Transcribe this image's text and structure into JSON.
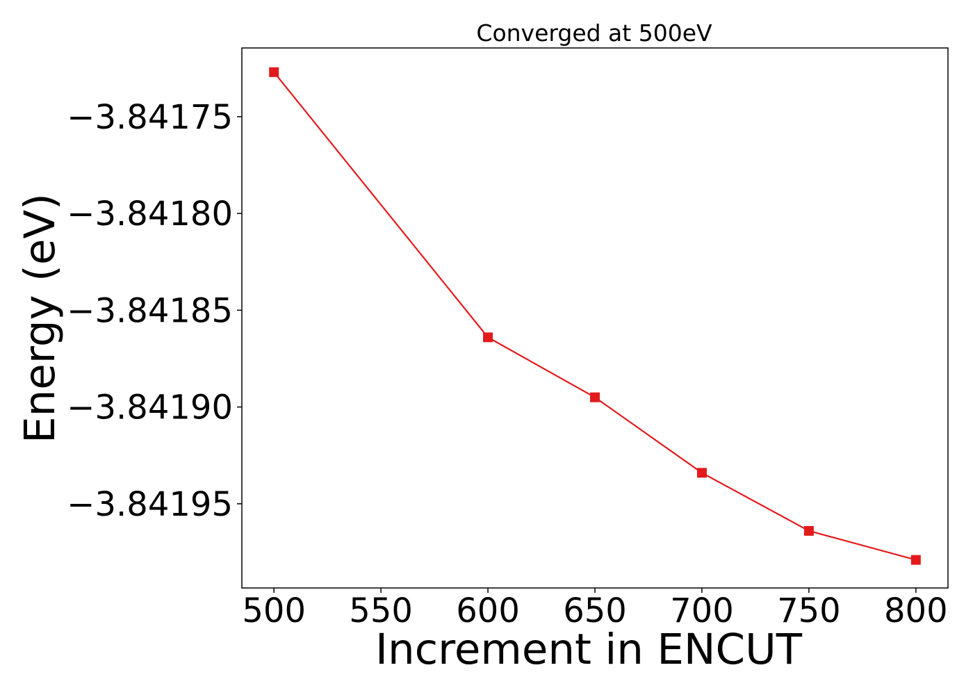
{
  "chart_data": {
    "type": "line",
    "title": "Converged at 500eV",
    "xlabel": "Increment in ENCUT",
    "ylabel": "Energy (eV)",
    "x": [
      500,
      600,
      650,
      700,
      750,
      800
    ],
    "series": [
      {
        "values": [
          -3.841727,
          -3.841864,
          -3.841895,
          -3.841934,
          -3.841964,
          -3.841979
        ],
        "color": "#e31a1c",
        "marker": "square"
      }
    ],
    "xticks": [
      500,
      550,
      600,
      650,
      700,
      750,
      800
    ],
    "xtick_labels": [
      "500",
      "550",
      "600",
      "650",
      "700",
      "750",
      "800"
    ],
    "yticks": [
      -3.84175,
      -3.8418,
      -3.84185,
      -3.8419,
      -3.84195
    ],
    "ytick_labels": [
      "−3.84175",
      "−3.84180",
      "−3.84185",
      "−3.84190",
      "−3.84195"
    ],
    "xlim": [
      485,
      815
    ],
    "ylim": [
      -3.8419935,
      -3.8417145
    ],
    "grid": false,
    "legend": "none"
  }
}
